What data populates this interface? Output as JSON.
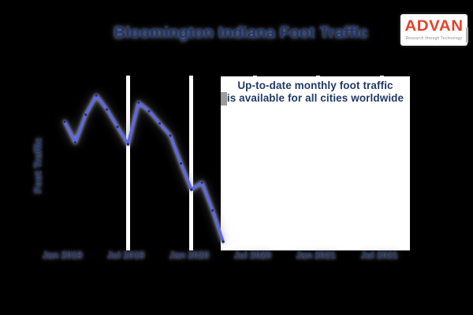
{
  "title": "Bloomington Indiana Foot Traffic",
  "logo": {
    "brand": "ADVAN",
    "tagline": "Research through Technology",
    "brand_color": "#e2432a"
  },
  "y_axis_label": "Foot Traffic",
  "annotation": {
    "line1": "Up-to-date monthly foot traffic",
    "line2": "is available for all cities worldwide"
  },
  "x_axis_ticks": [
    "Jan 2019",
    "Jul 2019",
    "Jan 2020",
    "Jul 2020",
    "Jan 2021",
    "Jul 2021"
  ],
  "colors": {
    "background": "#000000",
    "line": "#5d68dd",
    "marker": "#232b72",
    "navy_text": "#22366b",
    "title_text": "#1d3670",
    "annotation_text": "#233a66",
    "gridline": "#ffffff",
    "annotation_box": "#ffffff",
    "logo_red": "#e2432a",
    "tagline_gray": "#8f8f8f"
  },
  "chart_data": {
    "type": "line",
    "title": "Bloomington Indiana Foot Traffic",
    "xlabel": "",
    "ylabel": "Foot Traffic",
    "x": [
      "Jan 2019",
      "Feb 2019",
      "Mar 2019",
      "Apr 2019",
      "May 2019",
      "Jun 2019",
      "Jul 2019",
      "Aug 2019",
      "Sep 2019",
      "Oct 2019",
      "Nov 2019",
      "Dec 2019",
      "Jan 2020",
      "Feb 2020",
      "Mar 2020",
      "Apr 2020"
    ],
    "values": [
      74,
      62,
      78,
      89,
      81,
      71,
      61,
      85,
      80,
      73,
      66,
      50,
      35,
      39,
      23,
      5
    ],
    "value_units": "relative foot traffic index 0-100 (y axis is unlabeled in the image; values estimated from pixel positions)",
    "ylim": [
      0,
      100
    ],
    "y_axis_labeled": false,
    "x_tick_labels_shown": [
      "Jan 2019",
      "Jul 2019",
      "Jan 2020",
      "Jul 2020",
      "Jan 2021",
      "Jul 2021"
    ],
    "grid": "vertical white gridlines at 6-month ticks; ticks from Jul 2020 onward hidden behind white annotation box",
    "legend_position": "none",
    "note": "Series ends April 2020 with steep decline; remainder of plot covered by white promo box"
  }
}
